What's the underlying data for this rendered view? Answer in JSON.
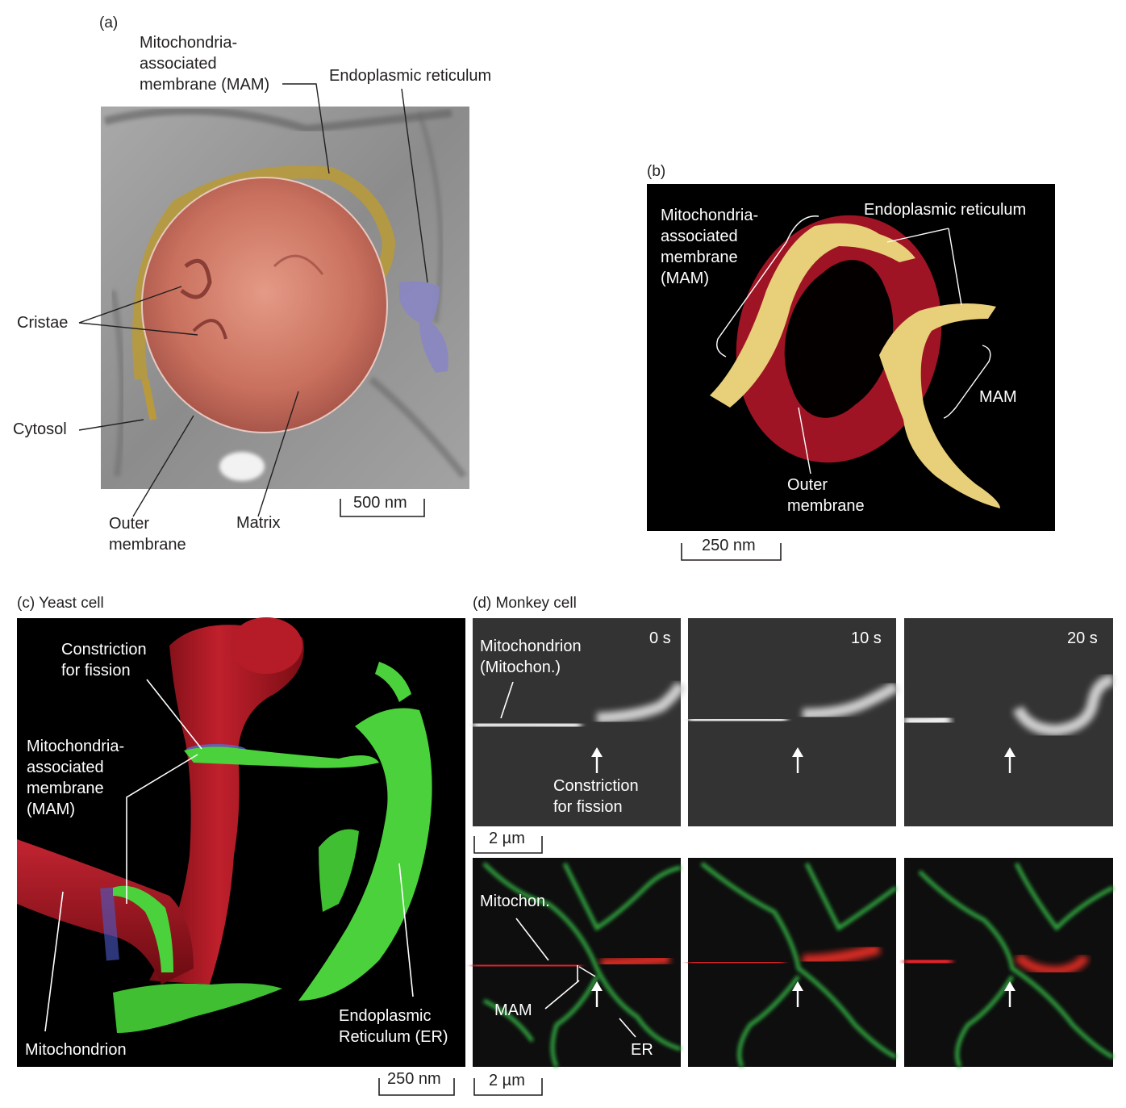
{
  "panel_a": {
    "tag": "(a)",
    "mam": "Mitochondria-\nassociated\nmembrane (MAM)",
    "er": "Endoplasmic reticulum",
    "cristae": "Cristae",
    "cytosol": "Cytosol",
    "outer_membrane": "Outer\nmembrane",
    "matrix": "Matrix",
    "scale": "500 nm"
  },
  "panel_b": {
    "tag": "(b)",
    "mam_long": "Mitochondria-\nassociated\nmembrane\n(MAM)",
    "er": "Endoplasmic reticulum",
    "mam": "MAM",
    "outer_membrane": "Outer\nmembrane",
    "scale": "250 nm"
  },
  "panel_c": {
    "tag": "(c) Yeast cell",
    "constriction": "Constriction\nfor fission",
    "mam": "Mitochondria-\nassociated\nmembrane\n(MAM)",
    "mitochondrion": "Mitochondrion",
    "er": "Endoplasmic\nReticulum (ER)",
    "scale": "250 nm"
  },
  "panel_d": {
    "tag": "(d) Monkey cell",
    "times": [
      "0 s",
      "10 s",
      "20 s"
    ],
    "mito_full": "Mitochondrion\n(Mitochon.)",
    "constriction": "Constriction\nfor fission",
    "scale_top": "2 µm",
    "mitochon": "Mitochon.",
    "mam": "MAM",
    "er": "ER",
    "scale_bottom": "2 µm"
  },
  "colors": {
    "mito_red": "#b5192a",
    "er_green": "#4bd13b",
    "mam_yellow": "#f2d27a",
    "er_blue": "#8a86c4",
    "em_gray": "#9a9a9a"
  }
}
